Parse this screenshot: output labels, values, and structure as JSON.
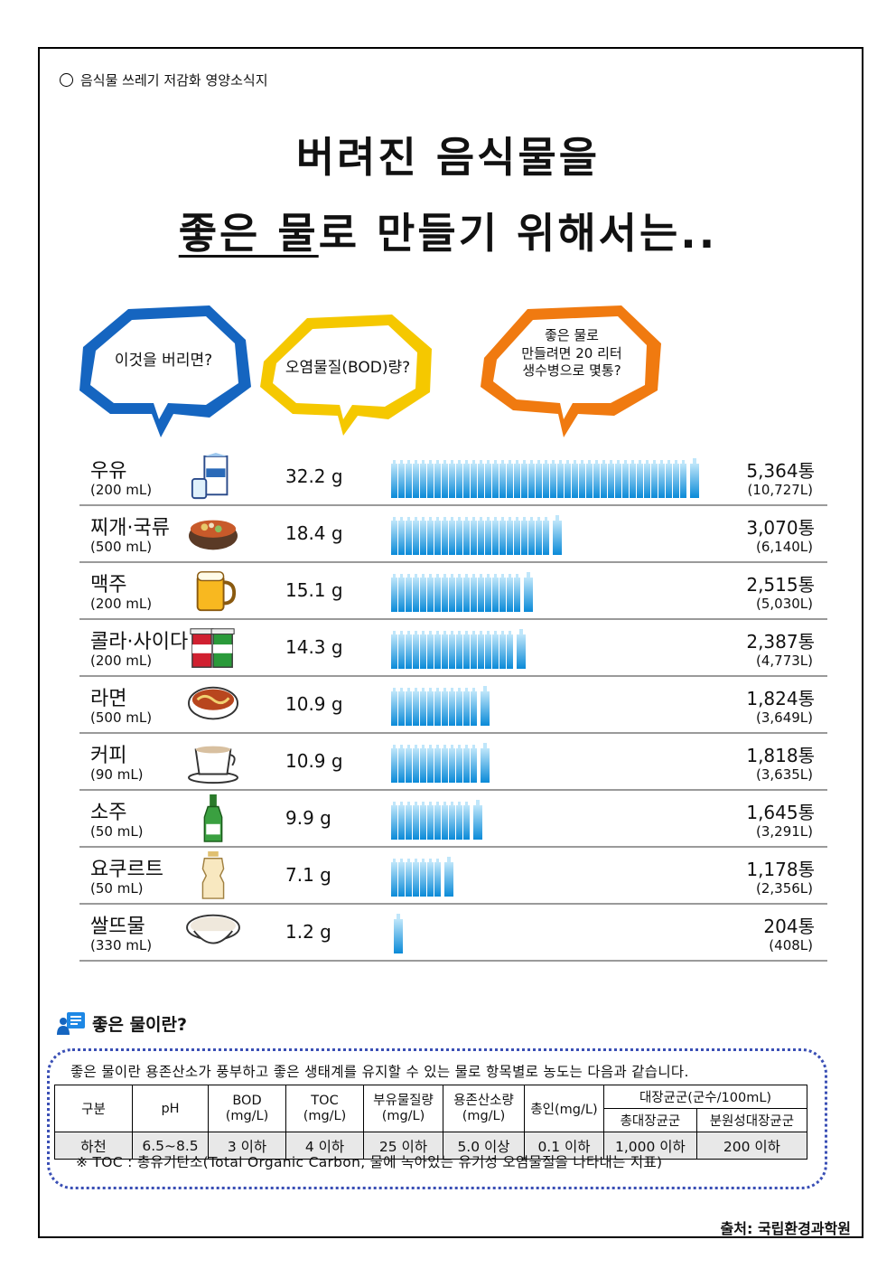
{
  "header_note": "음식물 쓰레기 저감화 영양소식지",
  "title": {
    "line1": "버려진 음식물을",
    "line2_underlined": "좋은 물",
    "line2_rest": "로 만들기 위해서는.."
  },
  "bubbles": [
    {
      "text": "이것을 버리면?",
      "color": "#1565c0"
    },
    {
      "text": "오염물질(BOD)량?",
      "color": "#f5c800"
    },
    {
      "text": "좋은 물로 만들려면 20 리터 생수병으로 몇통?",
      "lines": [
        "좋은 물로",
        "만들려면 20 리터",
        "생수병으로 몇통?"
      ],
      "color": "#f07a10"
    }
  ],
  "rows": [
    {
      "name": "우유",
      "unit": "(200 mL)",
      "icon": "milk-carton-icon",
      "bod": "32.2 g",
      "count": "5,364통",
      "liter": "(10,727L)",
      "count_value": 5364
    },
    {
      "name": "찌개·국류",
      "unit": "(500 mL)",
      "icon": "stew-pot-icon",
      "bod": "18.4 g",
      "count": "3,070통",
      "liter": "(6,140L)",
      "count_value": 3070
    },
    {
      "name": "맥주",
      "unit": "(200 mL)",
      "icon": "beer-mug-icon",
      "bod": "15.1 g",
      "count": "2,515통",
      "liter": "(5,030L)",
      "count_value": 2515
    },
    {
      "name": "콜라·사이다",
      "unit": "(200 mL)",
      "icon": "soda-cups-icon",
      "bod": "14.3 g",
      "count": "2,387통",
      "liter": "(4,773L)",
      "count_value": 2387
    },
    {
      "name": "라면",
      "unit": "(500 mL)",
      "icon": "ramen-bowl-icon",
      "bod": "10.9 g",
      "count": "1,824통",
      "liter": "(3,649L)",
      "count_value": 1824
    },
    {
      "name": "커피",
      "unit": "(90 mL)",
      "icon": "coffee-cup-icon",
      "bod": "10.9 g",
      "count": "1,818통",
      "liter": "(3,635L)",
      "count_value": 1818
    },
    {
      "name": "소주",
      "unit": "(50 mL)",
      "icon": "soju-bottle-icon",
      "bod": "9.9 g",
      "count": "1,645통",
      "liter": "(3,291L)",
      "count_value": 1645
    },
    {
      "name": "요쿠르트",
      "unit": "(50 mL)",
      "icon": "yogurt-bottle-icon",
      "bod": "7.1 g",
      "count": "1,178통",
      "liter": "(2,356L)",
      "count_value": 1178
    },
    {
      "name": "쌀뜨물",
      "unit": "(330 mL)",
      "icon": "rice-water-bowl-icon",
      "bod": "1.2 g",
      "count": "204통",
      "liter": "(408L)",
      "count_value": 204
    }
  ],
  "good_water": {
    "heading": "좋은 물이란?",
    "description": "좋은 물이란 용존산소가 풍부하고 좋은 생태계를 유지할 수 있는 물로 항목별로 농도는 다음과 같습니다.",
    "headers": {
      "category": "구분",
      "ph": "pH",
      "bod": "BOD",
      "bod_unit": "(mg/L)",
      "toc": "TOC",
      "toc_unit": "(mg/L)",
      "ss": "부유물질량",
      "ss_unit": "(mg/L)",
      "do": "용존산소량",
      "do_unit": "(mg/L)",
      "tp": "총인(mg/L)",
      "coliform": "대장균군(군수/100mL)",
      "total_coliform": "총대장균군",
      "fecal_coliform": "분원성대장균군"
    },
    "values": {
      "category": "하천",
      "ph": "6.5~8.5",
      "bod": "3 이하",
      "toc": "4 이하",
      "ss": "25 이하",
      "do": "5.0 이상",
      "tp": "0.1 이하",
      "total_coliform": "1,000 이하",
      "fecal_coliform": "200 이하"
    },
    "note": "※ TOC : 총유기탄소(Total Organic Carbon, 물에 녹아있는 유기성 오염물질을 나타내는 지표)"
  },
  "source": "출처: 국립환경과학원",
  "colors": {
    "bottle_top": "#bfe6fa",
    "bottle_bottom": "#0a8ad8",
    "divider": "#9a9a9a",
    "dotted_border": "#3a4fb5"
  }
}
